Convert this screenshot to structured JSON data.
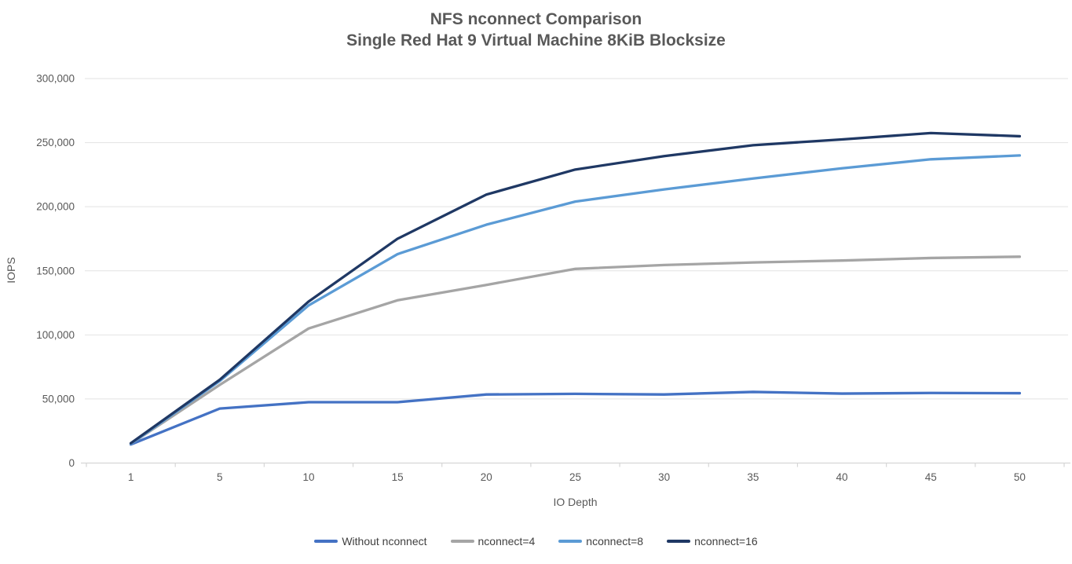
{
  "chart_data": {
    "type": "line",
    "title": "NFS nconnect Comparison",
    "subtitle": "Single Red Hat 9 Virtual Machine 8KiB Blocksize",
    "xlabel": "IO Depth",
    "ylabel": "IOPS",
    "categories": [
      1,
      5,
      10,
      15,
      20,
      25,
      30,
      35,
      40,
      45,
      50
    ],
    "ylim": [
      0,
      300000
    ],
    "ytick_step": 50000,
    "ytick_labels": [
      "0",
      "50,000",
      "100,000",
      "150,000",
      "200,000",
      "250,000",
      "300,000"
    ],
    "grid": "horizontal",
    "legend_position": "bottom",
    "series": [
      {
        "name": "Without nconnect",
        "color": "#4472C4",
        "values": [
          14500,
          42500,
          47500,
          47500,
          53500,
          54000,
          53500,
          55500,
          54200,
          54700,
          54500
        ]
      },
      {
        "name": "nconnect=4",
        "color": "#A5A5A5",
        "values": [
          15000,
          61000,
          105000,
          127000,
          139000,
          151500,
          154500,
          156500,
          158000,
          160000,
          161000
        ]
      },
      {
        "name": "nconnect=8",
        "color": "#5B9BD5",
        "values": [
          15000,
          64000,
          123000,
          163000,
          186000,
          204000,
          213500,
          222000,
          230000,
          237000,
          240000
        ]
      },
      {
        "name": "nconnect=16",
        "color": "#1F3864",
        "values": [
          15500,
          65000,
          126000,
          175000,
          209500,
          229000,
          239500,
          248000,
          252500,
          257500,
          255000
        ]
      }
    ]
  },
  "colors": {
    "background": "#FFFFFF",
    "gridline": "#E2E2E2",
    "axis_line": "#D6D6D6",
    "tick_text": "#595959",
    "title_text": "#595959",
    "legend_text": "#3F3F3F"
  }
}
